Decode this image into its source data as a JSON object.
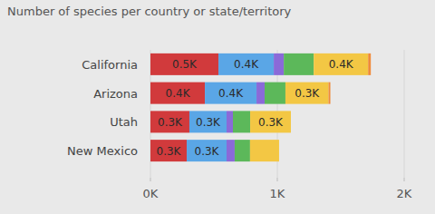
{
  "chart_data": {
    "type": "bar",
    "title": "Number of species per country or state/territory",
    "orientation": "horizontal",
    "stacked": true,
    "data_labels": true,
    "grid": true,
    "categories": [
      "California",
      "Arizona",
      "Utah",
      "New Mexico"
    ],
    "series": [
      {
        "color": "#d13a3c",
        "values": [
          536,
          429,
          307,
          286
        ],
        "value_labels": [
          "0.5K",
          "0.4K",
          "0.3K",
          "0.3K"
        ]
      },
      {
        "color": "#5aa6e6",
        "values": [
          436,
          407,
          293,
          314
        ],
        "value_labels": [
          "0.4K",
          "0.4K",
          "0.3K",
          "0.3K"
        ]
      },
      {
        "color": "#8a6ad8",
        "values": [
          79,
          64,
          50,
          64
        ]
      },
      {
        "color": "#5cb85a",
        "values": [
          236,
          164,
          136,
          121
        ]
      },
      {
        "color": "#f3c744",
        "values": [
          429,
          340,
          321,
          229
        ],
        "value_labels": [
          "0.4K",
          "0.3K",
          "0.3K",
          null
        ]
      },
      {
        "color": "#f08a3a",
        "values": [
          21,
          14,
          0,
          0
        ]
      }
    ],
    "xlim": [
      0,
      2000
    ],
    "xticks": [
      {
        "value": 0,
        "label": "0K"
      },
      {
        "value": 1000,
        "label": "1K"
      },
      {
        "value": 2000,
        "label": "2K"
      }
    ]
  }
}
